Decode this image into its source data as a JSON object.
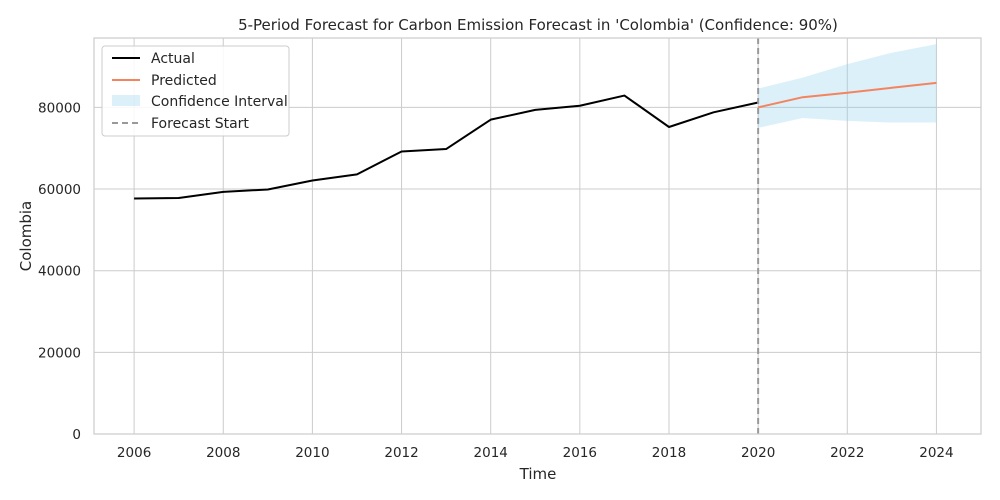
{
  "chart_data": {
    "type": "line",
    "title": "5-Period Forecast for Carbon Emission Forecast in 'Colombia' (Confidence: 90%)",
    "xlabel": "Time",
    "ylabel": "Colombia",
    "xlim": [
      2005.1,
      2025.0
    ],
    "ylim": [
      0,
      97000
    ],
    "xticks": [
      2006,
      2008,
      2010,
      2012,
      2014,
      2016,
      2018,
      2020,
      2022,
      2024
    ],
    "yticks": [
      0,
      20000,
      40000,
      60000,
      80000
    ],
    "grid": true,
    "legend_position": "top-left",
    "forecast_start": 2020,
    "series": [
      {
        "name": "Actual",
        "color": "#000000",
        "x": [
          2006,
          2007,
          2008,
          2009,
          2010,
          2011,
          2012,
          2013,
          2014,
          2015,
          2016,
          2017,
          2018,
          2019,
          2020
        ],
        "values": [
          57700,
          57800,
          59300,
          59900,
          62100,
          63600,
          69200,
          69800,
          77000,
          79400,
          80400,
          82900,
          75200,
          78800,
          81200
        ]
      },
      {
        "name": "Predicted",
        "color": "#f4845f",
        "x": [
          2020,
          2021,
          2022,
          2023,
          2024
        ],
        "values": [
          80000,
          82500,
          83600,
          84800,
          86000
        ]
      }
    ],
    "confidence_interval": {
      "name": "Confidence Interval",
      "color": "#87ceeb",
      "x": [
        2020,
        2021,
        2022,
        2023,
        2024
      ],
      "lower": [
        75000,
        77400,
        76700,
        76300,
        76300
      ],
      "upper": [
        84600,
        87300,
        90600,
        93400,
        95500
      ]
    },
    "forecast_line": {
      "name": "Forecast Start",
      "color": "#999999"
    }
  }
}
